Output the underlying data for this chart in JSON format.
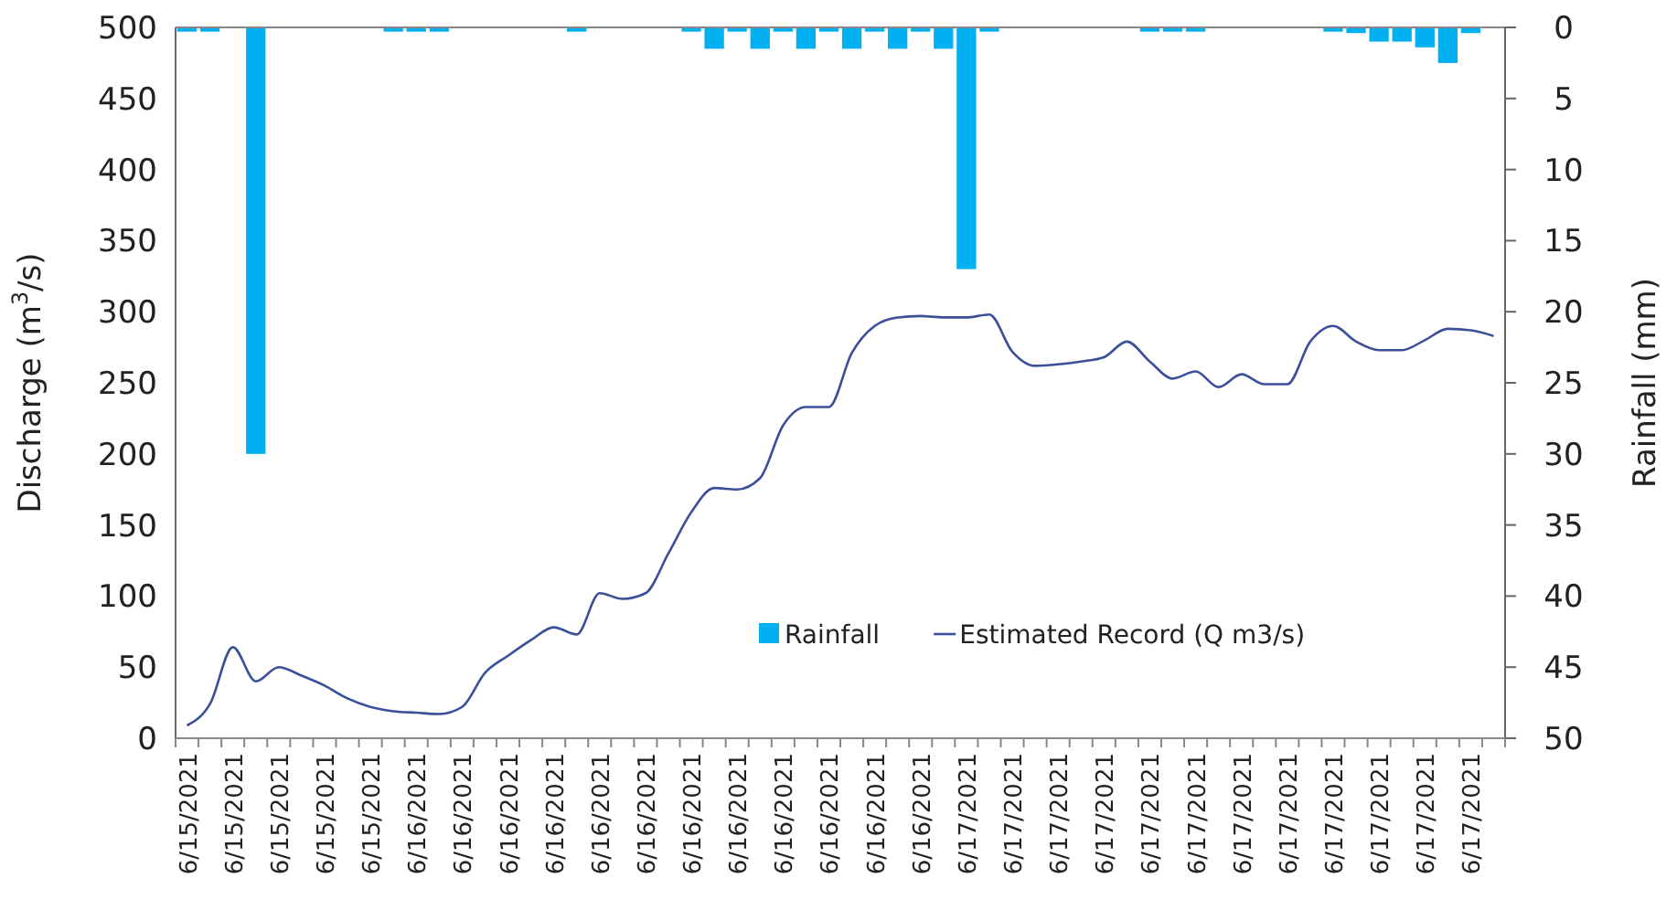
{
  "chart_data": {
    "type": "bar",
    "ylabel": "Discharge (m$^{3}$/s)",
    "y2label": "Rainfall (mm)",
    "categories": [
      "6/15/2021",
      null,
      "6/15/2021",
      null,
      "6/15/2021",
      null,
      "6/15/2021",
      null,
      "6/15/2021",
      null,
      "6/16/2021",
      null,
      "6/16/2021",
      null,
      "6/16/2021",
      null,
      "6/16/2021",
      null,
      "6/16/2021",
      null,
      "6/16/2021",
      null,
      "6/16/2021",
      null,
      "6/16/2021",
      null,
      "6/16/2021",
      null,
      "6/16/2021",
      null,
      "6/16/2021",
      null,
      "6/16/2021",
      null,
      "6/17/2021",
      null,
      "6/17/2021",
      null,
      "6/17/2021",
      null,
      "6/17/2021",
      null,
      "6/17/2021",
      null,
      "6/17/2021",
      null,
      "6/17/2021",
      null,
      "6/17/2021",
      null,
      "6/17/2021",
      null,
      "6/17/2021",
      null,
      "6/17/2021",
      null,
      "6/17/2021",
      null
    ],
    "series": [
      {
        "name": "Rainfall",
        "axis": "y2",
        "color": "#00b0f0",
        "values": [
          0.3,
          0.3,
          0,
          30,
          0,
          0,
          0,
          0,
          0,
          0.3,
          0.3,
          0.3,
          0,
          0,
          0,
          0,
          0,
          0.3,
          0,
          0,
          0,
          0,
          0.3,
          1.5,
          0.3,
          1.5,
          0.3,
          1.5,
          0.3,
          1.5,
          0.3,
          1.5,
          0.3,
          1.5,
          17,
          0.3,
          0,
          0,
          0,
          0,
          0,
          0,
          0.3,
          0.3,
          0.3,
          0,
          0,
          0,
          0,
          0,
          0.3,
          0.4,
          1,
          1,
          1.4,
          2.5,
          0.4,
          0
        ]
      },
      {
        "name": "Estimated Record (Q m3/s)",
        "type": "line",
        "color": "#3b4f9a",
        "values": [
          9,
          24,
          64,
          40,
          50,
          44,
          37,
          28,
          22,
          19,
          18,
          17,
          22,
          46,
          58,
          69,
          78,
          73,
          102,
          98,
          102,
          130,
          159,
          176,
          175,
          183,
          220,
          233,
          233,
          271,
          290,
          296,
          297,
          296,
          296,
          298,
          272,
          262,
          263,
          265,
          268,
          279,
          265,
          253,
          258,
          247,
          256,
          249,
          249,
          279,
          290,
          279,
          273,
          273,
          280,
          288,
          287,
          283
        ]
      }
    ],
    "ylim": [
      0,
      500
    ],
    "yticks": [
      0,
      50,
      100,
      150,
      200,
      250,
      300,
      350,
      400,
      450,
      500
    ],
    "y2lim": [
      50,
      0
    ],
    "y2ticks": [
      0,
      5,
      10,
      15,
      20,
      25,
      30,
      35,
      40,
      45,
      50
    ],
    "legend": "bottom right",
    "grid": false
  }
}
